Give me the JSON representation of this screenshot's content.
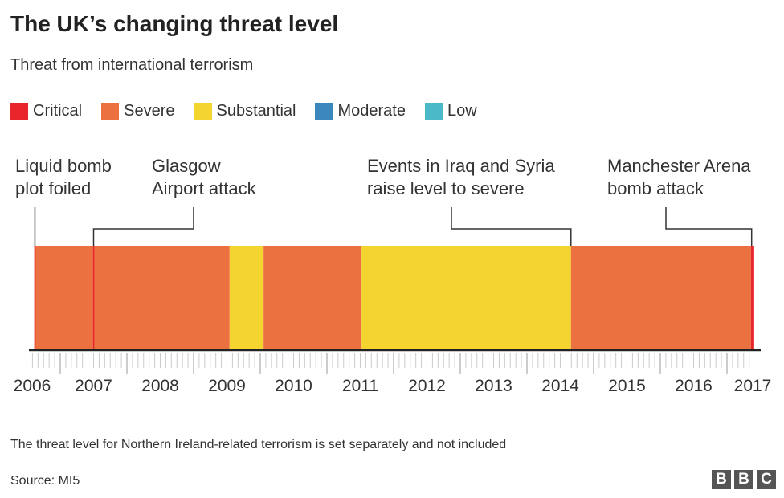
{
  "title": "The UK’s changing threat level",
  "subtitle": "Threat from international terrorism",
  "legend": [
    {
      "label": "Critical",
      "color": "#e8252b"
    },
    {
      "label": "Severe",
      "color": "#ec7140"
    },
    {
      "label": "Substantial",
      "color": "#f4d52f"
    },
    {
      "label": "Moderate",
      "color": "#3b88bf"
    },
    {
      "label": "Low",
      "color": "#4cb9c9"
    }
  ],
  "footer": {
    "note": "The threat level for Northern Ireland-related terrorism is set separately and not included",
    "source": "Source: MI5",
    "logo": [
      "B",
      "B",
      "C"
    ]
  },
  "chart_data": {
    "type": "timeline",
    "xlim": [
      2006.6,
      2017.4
    ],
    "x_ticks": [
      "2006",
      "2007",
      "2008",
      "2009",
      "2010",
      "2011",
      "2012",
      "2013",
      "2014",
      "2015",
      "2016",
      "2017"
    ],
    "segments": [
      {
        "level": "Critical",
        "start": 2006.61,
        "end": 2006.63
      },
      {
        "level": "Severe",
        "start": 2006.63,
        "end": 2007.49
      },
      {
        "level": "Critical",
        "start": 2007.49,
        "end": 2007.51
      },
      {
        "level": "Severe",
        "start": 2007.51,
        "end": 2009.54
      },
      {
        "level": "Substantial",
        "start": 2009.54,
        "end": 2010.05
      },
      {
        "level": "Severe",
        "start": 2010.05,
        "end": 2011.52
      },
      {
        "level": "Substantial",
        "start": 2011.52,
        "end": 2014.66
      },
      {
        "level": "Severe",
        "start": 2014.66,
        "end": 2017.36
      },
      {
        "level": "Critical",
        "start": 2017.36,
        "end": 2017.39
      }
    ],
    "annotations": [
      {
        "lines": [
          "Liquid bomb",
          "plot foiled"
        ],
        "at": 2006.62
      },
      {
        "lines": [
          "Glasgow",
          "Airport attack"
        ],
        "at": 2007.5
      },
      {
        "lines": [
          "Events in Iraq and Syria",
          "raise level to severe"
        ],
        "at": 2014.66
      },
      {
        "lines": [
          "Manchester Arena",
          "bomb attack"
        ],
        "at": 2017.37
      }
    ]
  }
}
